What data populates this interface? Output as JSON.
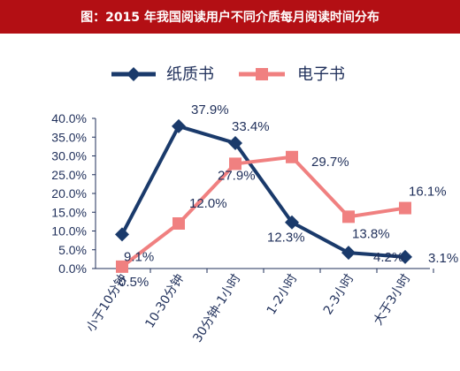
{
  "header": {
    "title": "图：2015 年我国阅读用户不同介质每月阅读时间分布"
  },
  "colors": {
    "title_bg": "#b30f14",
    "paper": "#1a3a6b",
    "ebook": "#f08080",
    "axis": "#1f2f5a"
  },
  "chart_data": {
    "type": "line",
    "title": "",
    "legend_position": "top",
    "categories": [
      "小于10分钟",
      "10-30分钟",
      "30分钟-1小时",
      "1-2小时",
      "2-3小时",
      "大于3小时"
    ],
    "series": [
      {
        "name": "纸质书",
        "values": [
          9.1,
          37.9,
          33.4,
          12.3,
          4.2,
          3.1
        ],
        "labels": [
          "9.1%",
          "37.9%",
          "33.4%",
          "12.3%",
          "4.2%",
          "3.1%"
        ]
      },
      {
        "name": "电子书",
        "values": [
          0.5,
          12.0,
          27.9,
          29.7,
          13.8,
          16.1
        ],
        "labels": [
          "0.5%",
          "12.0%",
          "27.9%",
          "29.7%",
          "13.8%",
          "16.1%"
        ]
      }
    ],
    "ylim": [
      0,
      40
    ],
    "yticks": [
      "0.0%",
      "5.0%",
      "10.0%",
      "15.0%",
      "20.0%",
      "25.0%",
      "30.0%",
      "35.0%",
      "40.0%"
    ],
    "grid": false
  }
}
